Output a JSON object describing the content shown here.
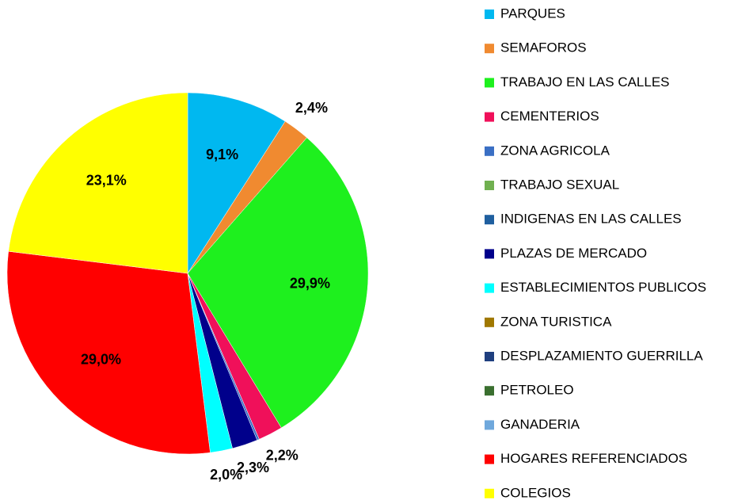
{
  "chart_data": {
    "type": "pie",
    "categories": [
      "PARQUES",
      "SEMAFOROS",
      "TRABAJO EN LAS CALLES",
      "CEMENTERIOS",
      "ZONA AGRICOLA",
      "TRABAJO SEXUAL",
      "INDIGENAS EN LAS CALLES",
      "PLAZAS DE MERCADO",
      "ESTABLECIMIENTOS PUBLICOS",
      "ZONA TURISTICA",
      "DESPLAZAMIENTO GUERRILLA",
      "PETROLEO",
      "GANADERIA",
      "HOGARES REFERENCIADOS",
      "COLEGIOS"
    ],
    "values": [
      9.1,
      2.4,
      29.9,
      2.2,
      0.2,
      0,
      0,
      2.3,
      2.0,
      0,
      0,
      0,
      0,
      29.0,
      23.1
    ],
    "value_labels": [
      "9,1%",
      "2,4%",
      "29,9%",
      "2,2%",
      null,
      null,
      null,
      "2,3%",
      "2,0%",
      null,
      null,
      null,
      null,
      "29,0%",
      "23,1%"
    ],
    "colors": [
      "#00b8f0",
      "#f08a30",
      "#1ef01e",
      "#f0105a",
      "#3a6fc4",
      "#70b050",
      "#1f5f9f",
      "#00008b",
      "#00ffff",
      "#a07800",
      "#1f3f7f",
      "#3a6f2f",
      "#6fa8dc",
      "#ff0000",
      "#ffff00"
    ]
  }
}
